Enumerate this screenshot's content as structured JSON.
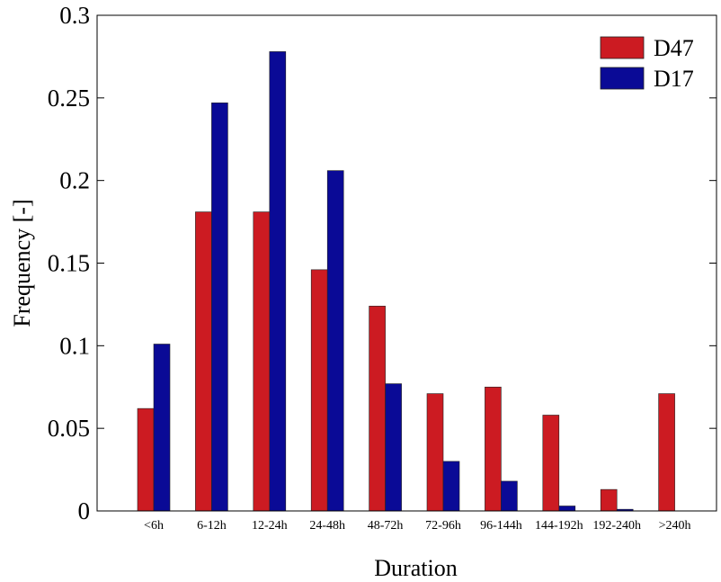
{
  "chart_data": {
    "type": "bar",
    "xlabel": "Duration",
    "ylabel": "Frequency [-]",
    "ylim": [
      0,
      0.3
    ],
    "yticks": [
      "0",
      "0.05",
      "0.1",
      "0.15",
      "0.2",
      "0.25",
      "0.3"
    ],
    "categories": [
      "<6h",
      "6-12h",
      "12-24h",
      "24-48h",
      "48-72h",
      "72-96h",
      "96-144h",
      "144-192h",
      "192-240h",
      ">240h"
    ],
    "series": [
      {
        "name": "D47",
        "color": "#cc1b22",
        "values": [
          0.062,
          0.181,
          0.181,
          0.146,
          0.124,
          0.071,
          0.075,
          0.058,
          0.013,
          0.071
        ]
      },
      {
        "name": "D17",
        "color": "#0a0a96",
        "values": [
          0.101,
          0.247,
          0.278,
          0.206,
          0.077,
          0.03,
          0.018,
          0.003,
          0.001,
          0
        ]
      }
    ],
    "legend_position": "top-right",
    "grid": false
  }
}
